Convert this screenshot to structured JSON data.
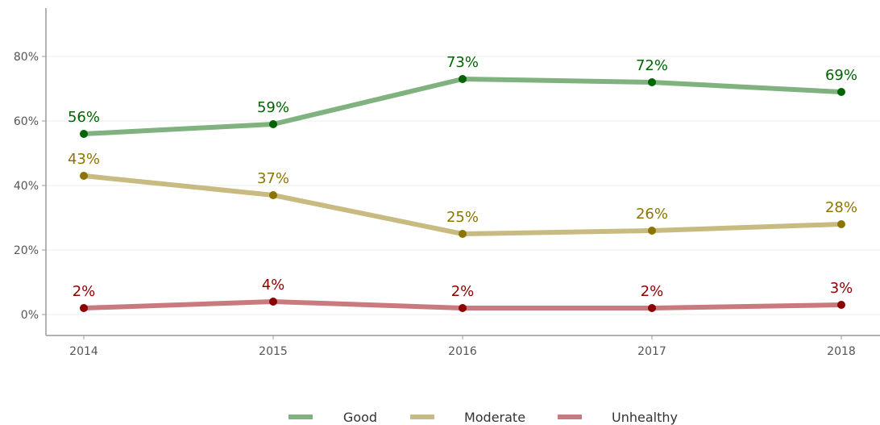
{
  "chart_data": {
    "type": "line",
    "title": "",
    "xlabel": "",
    "ylabel": "",
    "x": [
      "2014",
      "2015",
      "2016",
      "2017",
      "2018"
    ],
    "ylim": [
      -6.5,
      95
    ],
    "yticks": [
      0,
      20,
      40,
      60,
      80
    ],
    "ytick_labels": [
      "0%",
      "20%",
      "40%",
      "60%",
      "80%"
    ],
    "grid": true,
    "legend_position": "bottom",
    "series": [
      {
        "name": "Good",
        "values": [
          56,
          59,
          73,
          72,
          69
        ],
        "labels": [
          "56%",
          "59%",
          "73%",
          "72%",
          "69%"
        ],
        "line_color": "#7fb27f",
        "point_color": "#006400"
      },
      {
        "name": "Moderate",
        "values": [
          43,
          37,
          25,
          26,
          28
        ],
        "labels": [
          "43%",
          "37%",
          "25%",
          "26%",
          "28%"
        ],
        "line_color": "#c8bb82",
        "point_color": "#8b7500"
      },
      {
        "name": "Unhealthy",
        "values": [
          2,
          4,
          2,
          2,
          3
        ],
        "labels": [
          "2%",
          "4%",
          "2%",
          "2%",
          "3%"
        ],
        "line_color": "#c97a7e",
        "point_color": "#8b0000"
      }
    ]
  }
}
